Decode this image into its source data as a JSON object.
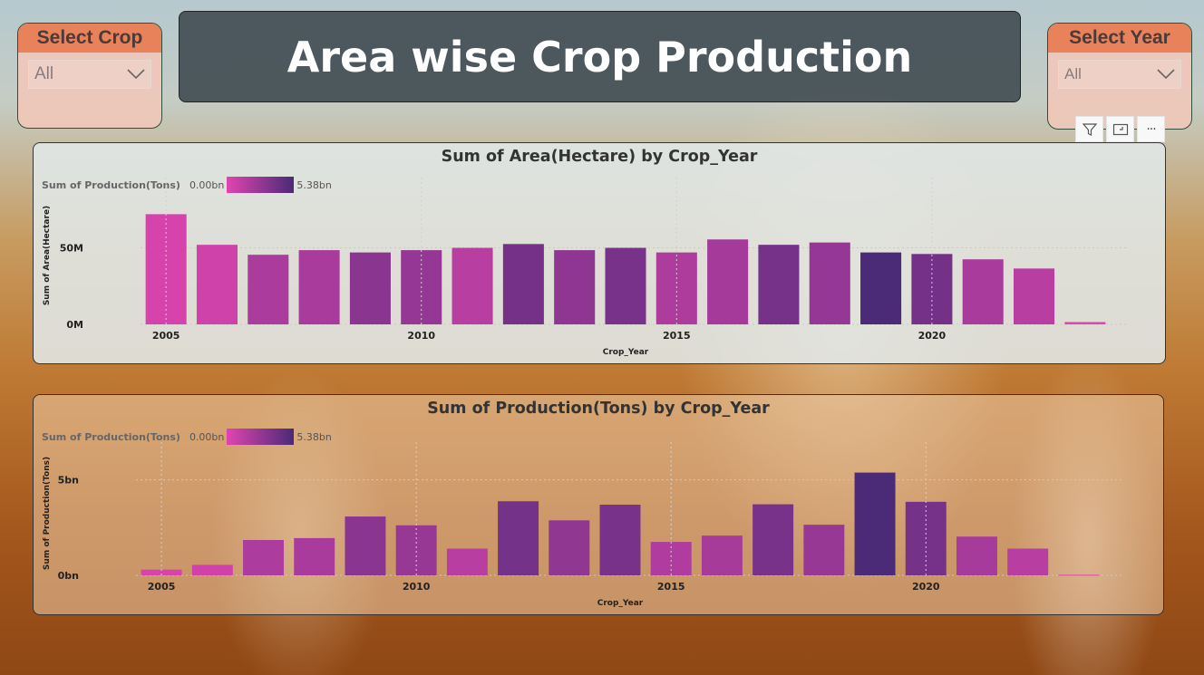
{
  "page_title": "Area wise Crop Production",
  "crop_slicer": {
    "label": "Select Crop",
    "value": "All"
  },
  "year_slicer": {
    "label": "Select Year",
    "value": "All"
  },
  "toolbar": {
    "icons": [
      "filter-icon",
      "focus-mode-icon",
      "more-options-icon"
    ],
    "more_label": "···"
  },
  "colors": {
    "low": "#df45b0",
    "high": "#4b2a78",
    "slicer_header": "#e8825a"
  },
  "chart_data": [
    {
      "type": "bar",
      "title": "Sum of Area(Hectare) by Crop_Year",
      "xlabel": "Crop_Year",
      "ylabel": "Sum of Area(Hectare)",
      "legend": {
        "name": "Sum of Production(Tons)",
        "min_label": "0.00bn",
        "max_label": "5.38bn"
      },
      "x_ticks": [
        "2005",
        "2010",
        "2015",
        "2020"
      ],
      "y_ticks": [
        "0M",
        "50M"
      ],
      "y_tick_values": [
        0,
        50000000
      ],
      "ylim": [
        0,
        90000000
      ],
      "categories": [
        2005,
        2006,
        2007,
        2008,
        2009,
        2010,
        2011,
        2012,
        2013,
        2014,
        2015,
        2016,
        2017,
        2018,
        2019,
        2020,
        2021,
        2022,
        2023
      ],
      "values": [
        72000000,
        52000000,
        45500000,
        48500000,
        47000000,
        48500000,
        50000000,
        52500000,
        48500000,
        50000000,
        47000000,
        55500000,
        52000000,
        53500000,
        47000000,
        46000000,
        42500000,
        36500000,
        1500000
      ],
      "color_values": [
        0.3,
        0.6,
        1.9,
        2.0,
        3.1,
        2.7,
        1.4,
        3.9,
        2.9,
        3.7,
        1.8,
        2.1,
        3.8,
        2.7,
        5.38,
        3.9,
        2.0,
        1.4,
        0.03
      ]
    },
    {
      "type": "bar",
      "title": "Sum of Production(Tons) by Crop_Year",
      "xlabel": "Crop_Year",
      "ylabel": "Sum of Production(Tons)",
      "legend": {
        "name": "Sum of Production(Tons)",
        "min_label": "0.00bn",
        "max_label": "5.38bn"
      },
      "x_ticks": [
        "2005",
        "2010",
        "2015",
        "2020"
      ],
      "y_ticks": [
        "0bn",
        "5bn"
      ],
      "y_tick_values": [
        0,
        5000000000
      ],
      "ylim": [
        0,
        6500000000
      ],
      "categories": [
        2005,
        2006,
        2007,
        2008,
        2009,
        2010,
        2011,
        2012,
        2013,
        2014,
        2015,
        2016,
        2017,
        2018,
        2019,
        2020,
        2021,
        2022,
        2023
      ],
      "values": [
        300000000,
        550000000,
        1850000000,
        1950000000,
        3080000000,
        2620000000,
        1400000000,
        3880000000,
        2880000000,
        3700000000,
        1750000000,
        2080000000,
        3720000000,
        2650000000,
        5380000000,
        3850000000,
        2030000000,
        1400000000,
        30000000
      ],
      "color_values": [
        0.3,
        0.55,
        1.85,
        1.95,
        3.08,
        2.62,
        1.4,
        3.88,
        2.88,
        3.7,
        1.75,
        2.08,
        3.72,
        2.65,
        5.38,
        3.85,
        2.03,
        1.4,
        0.03
      ]
    }
  ]
}
